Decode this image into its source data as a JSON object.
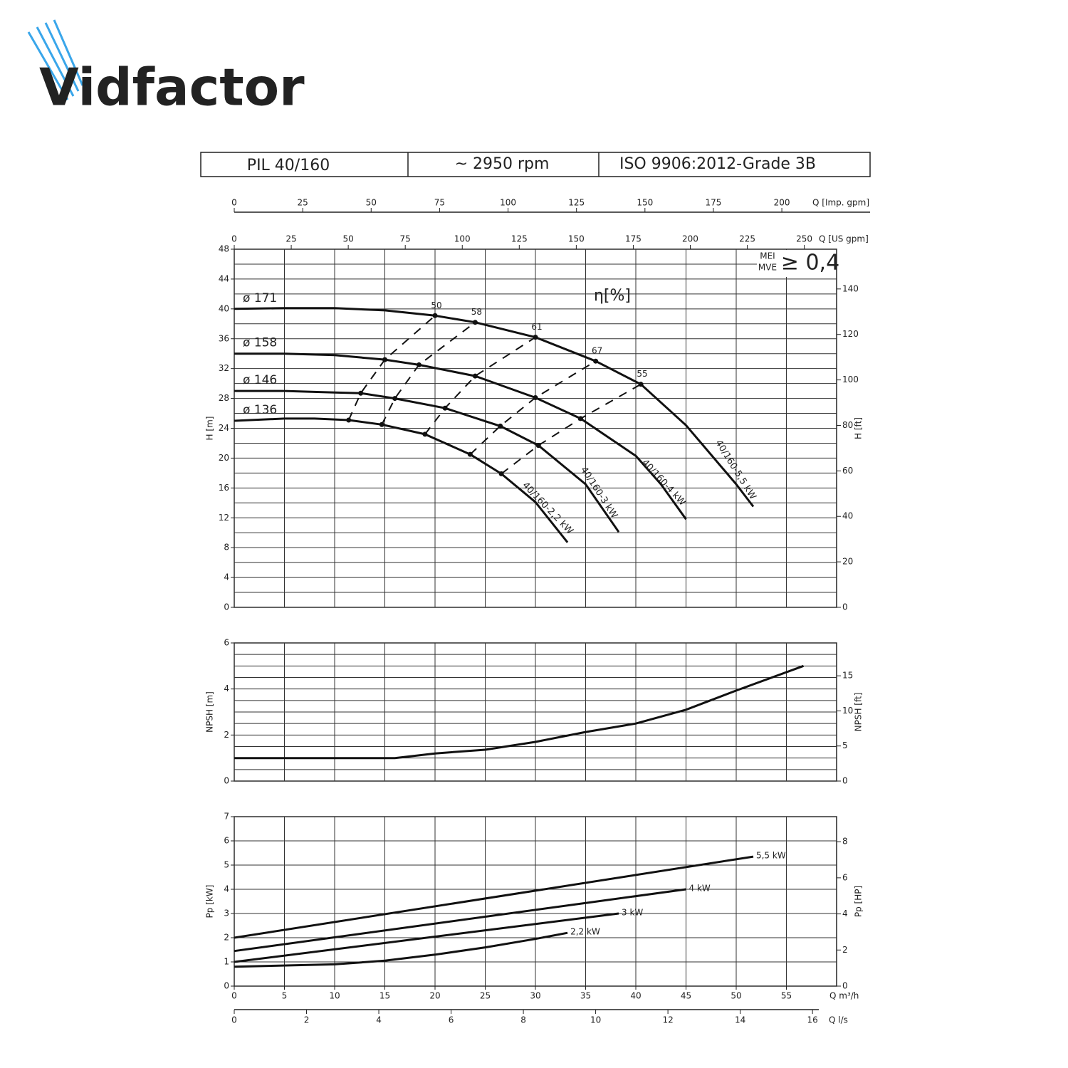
{
  "logo": "Vidfactor",
  "header": {
    "model": "PIL 40/160",
    "speed": "~ 2950 rpm",
    "standard": "ISO 9906:2012-Grade 3B"
  },
  "chart_data": [
    {
      "type": "line",
      "ylabel": "H [m]",
      "y2label": "H [ft]",
      "xlim": [
        0,
        60
      ],
      "xticks": [
        0,
        5,
        10,
        15,
        20,
        25,
        30,
        35,
        40,
        45,
        50,
        55
      ],
      "ylim": [
        0,
        48
      ],
      "yticks": [
        0,
        4,
        8,
        12,
        16,
        20,
        24,
        28,
        32,
        36,
        40,
        44,
        48
      ],
      "y_grid": [
        0,
        2,
        4,
        6,
        8,
        10,
        12,
        14,
        16,
        18,
        20,
        22,
        24,
        26,
        28,
        30,
        32,
        34,
        36,
        38,
        40,
        42,
        44,
        46,
        48
      ],
      "y2lim": [
        0,
        157.48
      ],
      "y2ticks": [
        0,
        20,
        40,
        60,
        80,
        100,
        120,
        140
      ],
      "top_axes": [
        {
          "label": "Q [Imp. gpm]",
          "lim": [
            0,
            220
          ],
          "ticks": [
            0,
            25,
            50,
            75,
            100,
            125,
            150,
            175,
            200
          ]
        },
        {
          "label": "Q [US gpm]",
          "lim": [
            0,
            264.17
          ],
          "ticks": [
            0,
            25,
            50,
            75,
            100,
            125,
            150,
            175,
            200,
            225,
            250
          ]
        }
      ],
      "series": [
        {
          "name": "ø 171",
          "curve_label": "40/160-5,5 kW",
          "x": [
            0,
            5,
            10,
            15,
            20,
            24,
            30,
            36,
            40.5,
            45,
            50,
            51.7
          ],
          "values": [
            40,
            40.1,
            40.1,
            39.8,
            39.1,
            38.2,
            36.2,
            33.0,
            29.9,
            24.4,
            16.5,
            13.5
          ]
        },
        {
          "name": "ø 158",
          "curve_label": "40/160-4 kW",
          "x": [
            0,
            5,
            10,
            15,
            18.4,
            24,
            30,
            34.5,
            40,
            42.5,
            45
          ],
          "values": [
            34,
            34,
            33.8,
            33.2,
            32.5,
            31.0,
            28.1,
            25.3,
            20.3,
            16.5,
            11.8
          ]
        },
        {
          "name": "ø 146",
          "curve_label": "40/160-3 kW",
          "x": [
            0,
            5,
            10,
            12.6,
            16,
            21,
            26.5,
            30.3,
            35,
            38.3
          ],
          "values": [
            29,
            29,
            28.8,
            28.7,
            28.0,
            26.7,
            24.3,
            21.7,
            16.5,
            10.1
          ]
        },
        {
          "name": "ø 136",
          "curve_label": "40/160-2,2 kW",
          "x": [
            0,
            5,
            8,
            11.4,
            14.7,
            19,
            23.5,
            26.6,
            30,
            33.2
          ],
          "values": [
            25,
            25.3,
            25.3,
            25.1,
            24.5,
            23.2,
            20.5,
            17.9,
            14.1,
            8.7
          ]
        }
      ],
      "efficiency_title": "η[%]",
      "efficiency": [
        {
          "name": "50",
          "x": [
            11.4,
            12.6,
            15,
            20
          ],
          "values": [
            25.1,
            28.7,
            33.2,
            39.1
          ]
        },
        {
          "name": "58",
          "x": [
            14.7,
            16,
            18.4,
            24
          ],
          "values": [
            24.5,
            28.0,
            32.5,
            38.2
          ]
        },
        {
          "name": "61",
          "x": [
            19,
            21,
            24,
            30
          ],
          "values": [
            23.2,
            26.7,
            31.0,
            36.2
          ]
        },
        {
          "name": "67",
          "x": [
            23.5,
            26.5,
            30,
            36
          ],
          "values": [
            20.5,
            24.3,
            28.1,
            33.0
          ]
        },
        {
          "name": "55",
          "x": [
            26.6,
            30.3,
            34.5,
            40.5
          ],
          "values": [
            17.9,
            21.7,
            25.3,
            29.9
          ]
        }
      ],
      "mei": {
        "labels": [
          "MEI",
          "MVE"
        ],
        "value": "≥ 0,4"
      }
    },
    {
      "type": "line",
      "ylabel": "NPSH [m]",
      "y2label": "NPSH [ft]",
      "xlim": [
        0,
        60
      ],
      "xticks": [
        0,
        5,
        10,
        15,
        20,
        25,
        30,
        35,
        40,
        45,
        50,
        55
      ],
      "ylim": [
        0,
        6
      ],
      "yticks": [
        0,
        2,
        4,
        6
      ],
      "y_grid": [
        0,
        0.5,
        1,
        1.5,
        2,
        2.5,
        3,
        3.5,
        4,
        4.5,
        5,
        5.5,
        6
      ],
      "y2lim": [
        0,
        19.685
      ],
      "y2ticks": [
        0,
        5,
        10,
        15
      ],
      "series": [
        {
          "x": [
            0,
            16,
            20,
            25,
            30,
            35,
            40,
            45,
            50,
            56.7
          ],
          "values": [
            1,
            1,
            1.2,
            1.36,
            1.7,
            2.13,
            2.5,
            3.1,
            3.93,
            5.0
          ]
        }
      ]
    },
    {
      "type": "line",
      "ylabel": "Pp [kW]",
      "y2label": "Pp [HP]",
      "xlabel": "Q m³/h",
      "xlim": [
        0,
        60
      ],
      "xticks": [
        0,
        5,
        10,
        15,
        20,
        25,
        30,
        35,
        40,
        45,
        50,
        55
      ],
      "ylim": [
        0,
        7
      ],
      "yticks": [
        0,
        1,
        2,
        3,
        4,
        5,
        6,
        7
      ],
      "y_grid": [
        0,
        1,
        2,
        3,
        4,
        5,
        6,
        7
      ],
      "y2lim": [
        0,
        9.387
      ],
      "y2ticks": [
        0,
        2,
        4,
        6,
        8
      ],
      "bottom_axes": [
        {
          "label": "Q l/s",
          "lim": [
            0,
            16.667
          ],
          "ticks": [
            0,
            2,
            4,
            6,
            8,
            10,
            12,
            14,
            16
          ]
        }
      ],
      "series": [
        {
          "name": "5,5 kW",
          "x": [
            0,
            51.7
          ],
          "values": [
            2.0,
            5.35
          ]
        },
        {
          "name": "4 kW",
          "x": [
            0,
            45
          ],
          "values": [
            1.45,
            4.0
          ]
        },
        {
          "name": "3 kW",
          "x": [
            0,
            38.3
          ],
          "values": [
            1.0,
            3.0
          ]
        },
        {
          "name": "2,2 kW",
          "x": [
            0,
            10,
            15,
            20,
            25,
            30,
            33.2
          ],
          "values": [
            0.8,
            0.9,
            1.05,
            1.3,
            1.6,
            1.95,
            2.2
          ]
        }
      ]
    }
  ]
}
